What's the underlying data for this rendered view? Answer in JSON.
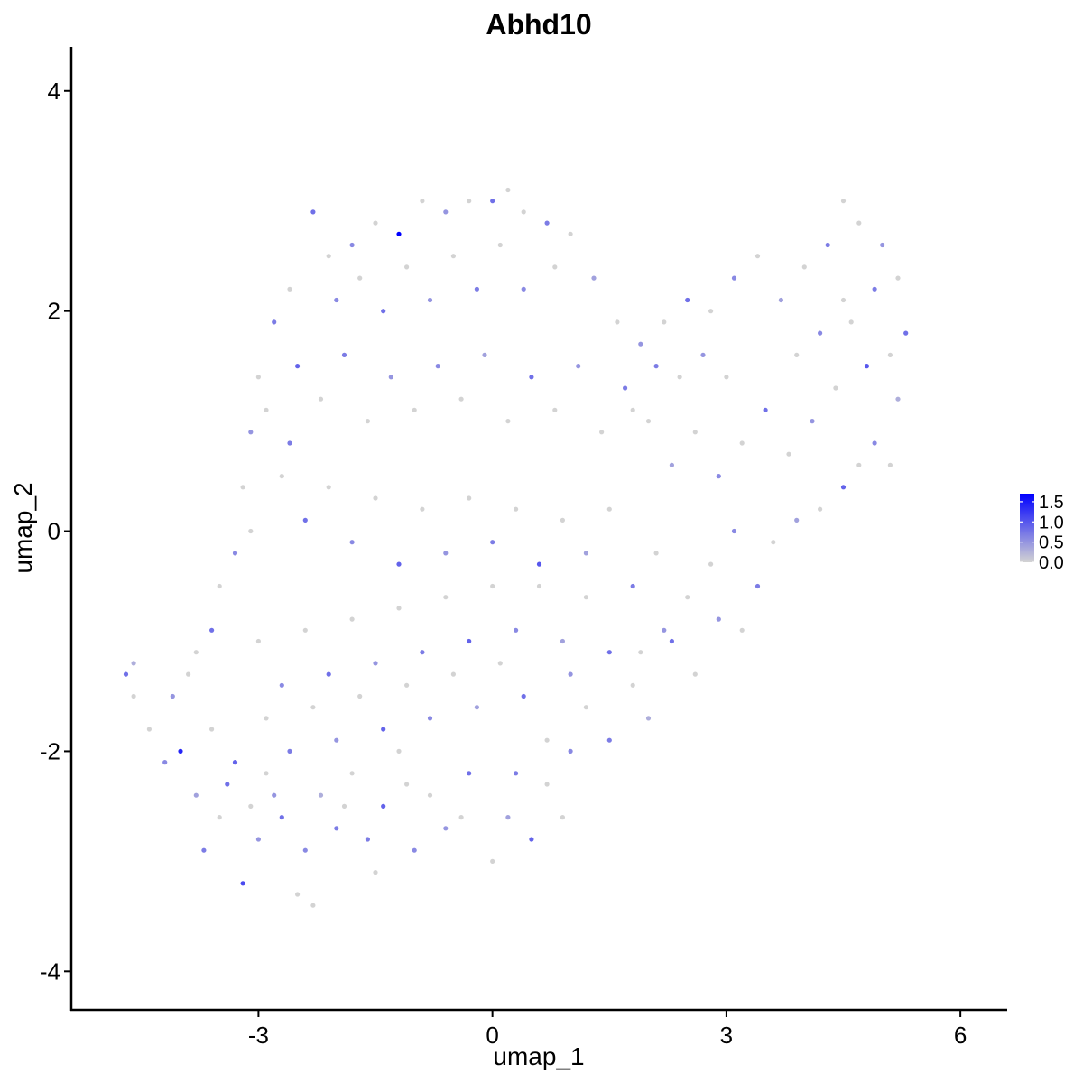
{
  "chart_data": {
    "type": "scatter",
    "title": "Abhd10",
    "xlabel": "umap_1",
    "ylabel": "umap_2",
    "xlim": [
      -5.4,
      6.6
    ],
    "ylim": [
      -4.35,
      4.4
    ],
    "xticks": [
      -3,
      0,
      3,
      6
    ],
    "xtick_labels": [
      "-3",
      "0",
      "3",
      "6"
    ],
    "yticks": [
      -4,
      -2,
      0,
      2,
      4
    ],
    "ytick_labels": [
      "-4",
      "-2",
      "0",
      "2",
      "4"
    ],
    "grid": false,
    "legend_position": "right",
    "color_scale": {
      "low_color": "#d3d3d3",
      "high_color": "#0000ff",
      "min": 0,
      "max": 1.7,
      "ticks": [
        0.0,
        0.5,
        1.0,
        1.5
      ],
      "tick_labels": [
        "0.0",
        "0.5",
        "1.0",
        "1.5"
      ]
    },
    "points": [
      [
        -4.7,
        -1.3,
        0.8
      ],
      [
        -4.6,
        -1.2,
        0.3
      ],
      [
        -4.6,
        -1.5,
        0.0
      ],
      [
        -4.4,
        -1.8,
        0.0
      ],
      [
        -4.2,
        -2.1,
        0.6
      ],
      [
        -4.0,
        -2.0,
        1.4
      ],
      [
        -4.1,
        -1.5,
        0.5
      ],
      [
        -3.9,
        -1.3,
        0.0
      ],
      [
        -3.8,
        -2.4,
        0.4
      ],
      [
        -3.7,
        -2.9,
        0.7
      ],
      [
        -3.5,
        -2.6,
        0.0
      ],
      [
        -3.3,
        -2.1,
        0.9
      ],
      [
        -3.2,
        -3.2,
        1.1
      ],
      [
        -3.0,
        -2.8,
        0.5
      ],
      [
        -2.9,
        -2.2,
        0.0
      ],
      [
        -2.7,
        -2.6,
        0.8
      ],
      [
        -2.5,
        -3.3,
        0.0
      ],
      [
        -2.4,
        -2.9,
        0.6
      ],
      [
        -2.3,
        -3.4,
        0.0
      ],
      [
        -2.2,
        -2.4,
        0.3
      ],
      [
        -2.0,
        -2.7,
        0.7
      ],
      [
        -1.8,
        -2.2,
        0.0
      ],
      [
        -1.5,
        -3.1,
        0.0
      ],
      [
        -1.4,
        -2.5,
        0.9
      ],
      [
        -1.2,
        -2.0,
        0.0
      ],
      [
        -1.0,
        -2.9,
        0.6
      ],
      [
        -0.8,
        -2.4,
        0.0
      ],
      [
        -0.6,
        -2.7,
        0.5
      ],
      [
        -0.3,
        -2.2,
        0.8
      ],
      [
        0.0,
        -3.0,
        0.0
      ],
      [
        0.2,
        -2.6,
        0.4
      ],
      [
        0.5,
        -2.8,
        0.9
      ],
      [
        0.7,
        -2.3,
        0.0
      ],
      [
        1.0,
        -2.0,
        0.6
      ],
      [
        1.2,
        -1.6,
        0.0
      ],
      [
        1.5,
        -1.9,
        0.7
      ],
      [
        1.8,
        -1.4,
        0.0
      ],
      [
        2.0,
        -1.7,
        0.3
      ],
      [
        2.3,
        -1.0,
        0.8
      ],
      [
        2.6,
        -1.3,
        0.0
      ],
      [
        2.9,
        -0.8,
        0.5
      ],
      [
        3.2,
        -0.9,
        0.0
      ],
      [
        3.4,
        -0.5,
        0.7
      ],
      [
        3.6,
        -0.1,
        0.0
      ],
      [
        3.9,
        0.1,
        0.4
      ],
      [
        4.2,
        0.2,
        0.0
      ],
      [
        4.5,
        0.4,
        0.9
      ],
      [
        4.7,
        0.6,
        0.0
      ],
      [
        4.9,
        0.8,
        0.6
      ],
      [
        5.1,
        0.6,
        0.0
      ],
      [
        5.2,
        1.2,
        0.3
      ],
      [
        5.3,
        1.8,
        0.8
      ],
      [
        5.2,
        2.3,
        0.0
      ],
      [
        5.0,
        2.6,
        0.5
      ],
      [
        4.7,
        2.8,
        0.0
      ],
      [
        4.5,
        3.0,
        0.0
      ],
      [
        4.3,
        2.6,
        0.7
      ],
      [
        4.0,
        2.4,
        0.0
      ],
      [
        3.7,
        2.1,
        0.4
      ],
      [
        3.4,
        2.5,
        0.0
      ],
      [
        3.1,
        2.3,
        0.6
      ],
      [
        2.8,
        2.0,
        0.0
      ],
      [
        2.5,
        2.1,
        0.8
      ],
      [
        2.2,
        1.9,
        0.0
      ],
      [
        1.9,
        1.7,
        0.5
      ],
      [
        1.6,
        1.9,
        0.0
      ],
      [
        1.3,
        2.3,
        0.4
      ],
      [
        1.0,
        2.7,
        0.0
      ],
      [
        0.7,
        2.8,
        0.7
      ],
      [
        0.4,
        2.9,
        0.0
      ],
      [
        0.2,
        3.1,
        0.0
      ],
      [
        0.0,
        3.0,
        0.8
      ],
      [
        -0.3,
        3.0,
        0.0
      ],
      [
        -0.6,
        2.9,
        0.5
      ],
      [
        -0.9,
        3.0,
        0.0
      ],
      [
        -1.2,
        2.7,
        1.7
      ],
      [
        -1.5,
        2.8,
        0.0
      ],
      [
        -1.8,
        2.6,
        0.6
      ],
      [
        -2.1,
        2.5,
        0.0
      ],
      [
        -2.3,
        2.9,
        0.8
      ],
      [
        -2.6,
        2.2,
        0.0
      ],
      [
        -2.8,
        1.9,
        0.7
      ],
      [
        -3.0,
        1.4,
        0.0
      ],
      [
        -3.1,
        0.9,
        0.5
      ],
      [
        -3.2,
        0.4,
        0.0
      ],
      [
        -3.3,
        -0.2,
        0.6
      ],
      [
        -3.5,
        -0.5,
        0.0
      ],
      [
        -3.6,
        -0.9,
        0.8
      ],
      [
        -3.8,
        -1.1,
        0.0
      ],
      [
        -2.5,
        1.5,
        0.9
      ],
      [
        -2.2,
        1.2,
        0.0
      ],
      [
        -1.9,
        1.6,
        0.7
      ],
      [
        -1.6,
        1.0,
        0.0
      ],
      [
        -1.3,
        1.4,
        0.5
      ],
      [
        -1.0,
        1.1,
        0.0
      ],
      [
        -0.7,
        1.5,
        0.6
      ],
      [
        -0.4,
        1.2,
        0.0
      ],
      [
        -0.1,
        1.6,
        0.4
      ],
      [
        0.2,
        1.0,
        0.0
      ],
      [
        0.5,
        1.4,
        0.8
      ],
      [
        0.8,
        1.1,
        0.0
      ],
      [
        1.1,
        1.5,
        0.5
      ],
      [
        1.4,
        0.9,
        0.0
      ],
      [
        1.7,
        1.3,
        0.7
      ],
      [
        2.0,
        1.0,
        0.0
      ],
      [
        2.3,
        0.6,
        0.4
      ],
      [
        2.6,
        0.9,
        0.0
      ],
      [
        2.9,
        0.5,
        0.6
      ],
      [
        3.2,
        0.8,
        0.0
      ],
      [
        3.5,
        1.1,
        0.8
      ],
      [
        3.8,
        0.7,
        0.0
      ],
      [
        4.1,
        1.0,
        0.5
      ],
      [
        4.4,
        1.3,
        0.0
      ],
      [
        4.8,
        1.5,
        1.0
      ],
      [
        4.6,
        1.9,
        0.0
      ],
      [
        -2.7,
        0.5,
        0.0
      ],
      [
        -2.4,
        0.1,
        0.8
      ],
      [
        -2.1,
        0.4,
        0.0
      ],
      [
        -1.8,
        -0.1,
        0.6
      ],
      [
        -1.5,
        0.3,
        0.0
      ],
      [
        -1.2,
        -0.3,
        0.9
      ],
      [
        -0.9,
        0.2,
        0.0
      ],
      [
        -0.6,
        -0.2,
        0.5
      ],
      [
        -0.3,
        0.3,
        0.0
      ],
      [
        0.0,
        -0.1,
        0.7
      ],
      [
        0.3,
        0.2,
        0.0
      ],
      [
        0.6,
        -0.3,
        1.0
      ],
      [
        0.9,
        0.1,
        0.0
      ],
      [
        1.2,
        -0.2,
        0.4
      ],
      [
        1.5,
        0.2,
        0.0
      ],
      [
        1.8,
        -0.5,
        0.7
      ],
      [
        2.1,
        -0.2,
        0.0
      ],
      [
        -3.0,
        -1.0,
        0.0
      ],
      [
        -2.7,
        -1.4,
        0.6
      ],
      [
        -2.4,
        -0.9,
        0.0
      ],
      [
        -2.1,
        -1.3,
        0.8
      ],
      [
        -1.8,
        -0.8,
        0.0
      ],
      [
        -1.5,
        -1.2,
        0.5
      ],
      [
        -1.2,
        -0.7,
        0.0
      ],
      [
        -0.9,
        -1.1,
        0.7
      ],
      [
        -0.6,
        -0.6,
        0.0
      ],
      [
        -0.3,
        -1.0,
        0.9
      ],
      [
        0.0,
        -0.5,
        0.0
      ],
      [
        0.3,
        -0.9,
        0.6
      ],
      [
        0.6,
        -0.5,
        0.0
      ],
      [
        0.9,
        -1.0,
        0.4
      ],
      [
        1.2,
        -0.6,
        0.0
      ],
      [
        1.5,
        -1.1,
        0.8
      ],
      [
        -2.9,
        -1.7,
        0.0
      ],
      [
        -2.6,
        -2.0,
        0.7
      ],
      [
        -2.3,
        -1.6,
        0.0
      ],
      [
        -2.0,
        -1.9,
        0.5
      ],
      [
        -1.7,
        -1.5,
        0.0
      ],
      [
        -1.4,
        -1.8,
        0.9
      ],
      [
        -1.1,
        -1.4,
        0.0
      ],
      [
        -0.8,
        -1.7,
        0.6
      ],
      [
        -0.5,
        -1.3,
        0.0
      ],
      [
        -0.2,
        -1.6,
        0.4
      ],
      [
        0.1,
        -1.2,
        0.0
      ],
      [
        0.4,
        -1.5,
        0.8
      ],
      [
        0.7,
        -1.9,
        0.0
      ],
      [
        1.0,
        -1.3,
        0.5
      ],
      [
        -3.6,
        -1.8,
        0.0
      ],
      [
        -3.4,
        -2.3,
        0.8
      ],
      [
        -3.1,
        -2.5,
        0.0
      ],
      [
        -2.8,
        -2.4,
        0.5
      ],
      [
        -1.9,
        -2.5,
        0.0
      ],
      [
        -1.6,
        -2.8,
        0.7
      ],
      [
        -1.1,
        -2.3,
        0.0
      ],
      [
        -0.4,
        -2.6,
        0.0
      ],
      [
        0.3,
        -2.2,
        0.7
      ],
      [
        0.9,
        -2.6,
        0.0
      ],
      [
        -2.0,
        2.1,
        0.6
      ],
      [
        -1.7,
        2.3,
        0.0
      ],
      [
        -1.4,
        2.0,
        0.8
      ],
      [
        -1.1,
        2.4,
        0.0
      ],
      [
        -0.8,
        2.1,
        0.5
      ],
      [
        -0.5,
        2.5,
        0.0
      ],
      [
        -0.2,
        2.2,
        0.7
      ],
      [
        0.1,
        2.6,
        0.0
      ],
      [
        0.4,
        2.2,
        0.6
      ],
      [
        0.8,
        2.4,
        0.0
      ],
      [
        -2.9,
        1.1,
        0.0
      ],
      [
        -2.6,
        0.8,
        0.7
      ],
      [
        -3.1,
        0.0,
        0.0
      ],
      [
        3.9,
        1.6,
        0.0
      ],
      [
        4.2,
        1.8,
        0.6
      ],
      [
        4.5,
        2.1,
        0.0
      ],
      [
        4.9,
        2.2,
        0.7
      ],
      [
        5.1,
        1.6,
        0.0
      ],
      [
        3.0,
        1.4,
        0.0
      ],
      [
        2.7,
        1.6,
        0.5
      ],
      [
        2.4,
        1.4,
        0.0
      ],
      [
        2.1,
        1.5,
        0.7
      ],
      [
        1.8,
        1.1,
        0.0
      ],
      [
        2.8,
        -0.3,
        0.0
      ],
      [
        3.1,
        0.0,
        0.6
      ],
      [
        2.5,
        -0.6,
        0.0
      ],
      [
        2.2,
        -0.9,
        0.5
      ],
      [
        1.9,
        -1.1,
        0.0
      ]
    ]
  }
}
